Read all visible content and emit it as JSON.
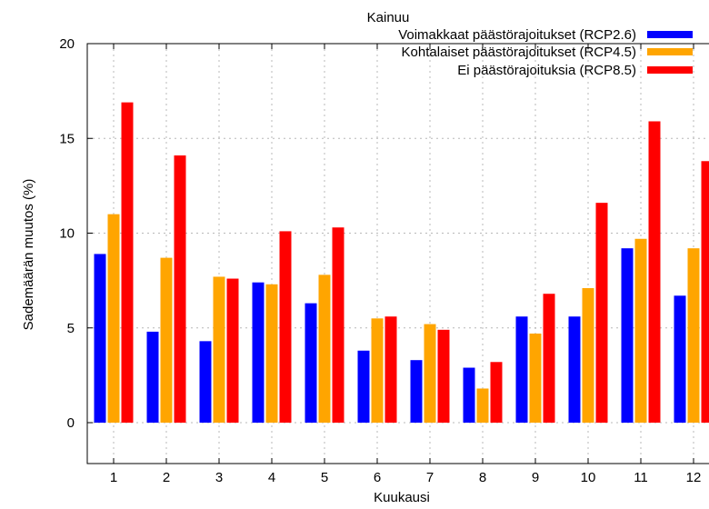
{
  "chart_data": {
    "type": "bar",
    "title": "Kainuu",
    "xlabel": "Kuukausi",
    "ylabel": "Sademäärän muutos (%)",
    "categories": [
      "1",
      "2",
      "3",
      "4",
      "5",
      "6",
      "7",
      "8",
      "9",
      "10",
      "11",
      "12"
    ],
    "ylim": [
      -2,
      20
    ],
    "yticks": [
      0,
      5,
      10,
      15,
      20
    ],
    "grid": true,
    "legend_position": "top-right",
    "series": [
      {
        "name": "Voimakkaat päästörajoitukset (RCP2.6)",
        "color": "#0000ff",
        "values": [
          8.9,
          4.8,
          4.3,
          7.4,
          6.3,
          3.8,
          3.3,
          2.9,
          5.6,
          5.6,
          9.2,
          6.7
        ]
      },
      {
        "name": "Kohtalaiset päästörajoitukset (RCP4.5)",
        "color": "#ffa500",
        "values": [
          11.0,
          8.7,
          7.7,
          7.3,
          7.8,
          5.5,
          5.2,
          1.8,
          4.7,
          7.1,
          9.7,
          9.2
        ]
      },
      {
        "name": "Ei päästörajoituksia (RCP8.5)",
        "color": "#ff0000",
        "values": [
          16.9,
          14.1,
          7.6,
          10.1,
          10.3,
          5.6,
          4.9,
          3.2,
          6.8,
          11.6,
          15.9,
          13.8
        ]
      }
    ]
  }
}
